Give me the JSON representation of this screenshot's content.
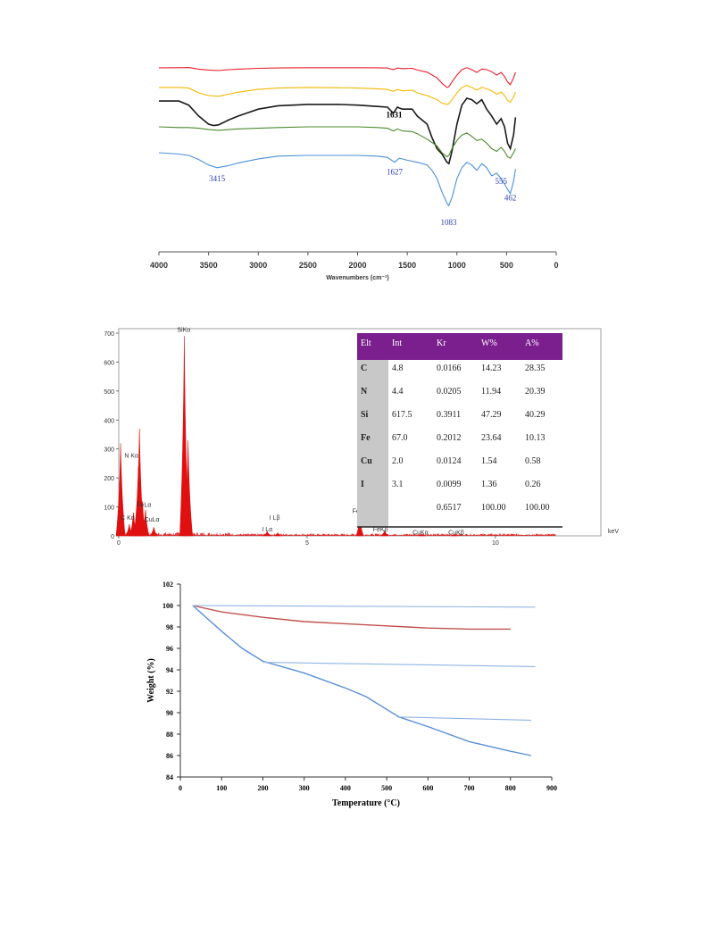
{
  "chart_data": [
    {
      "type": "line",
      "xlabel": "Wavenumbers (cm⁻¹)",
      "xlim": [
        4000,
        0
      ],
      "x_ticks": [
        "4000",
        "3500",
        "3000",
        "2500",
        "2000",
        "1500",
        "1000",
        "500",
        "0"
      ],
      "series": [
        {
          "color": "#e8202a",
          "x": [
            4000,
            3800,
            3700,
            3600,
            3500,
            3400,
            3300,
            3200,
            3000,
            2800,
            2500,
            2200,
            2000,
            1800,
            1700,
            1640,
            1600,
            1550,
            1450,
            1400,
            1300,
            1200,
            1150,
            1100,
            1080,
            1050,
            1000,
            950,
            900,
            850,
            800,
            750,
            700,
            650,
            600,
            555,
            520,
            490,
            462,
            430,
            410
          ],
          "y": [
            0.6,
            0.55,
            0.4,
            1.6,
            2.2,
            2.6,
            2.0,
            1.6,
            1.0,
            0.7,
            0.5,
            0.5,
            0.5,
            0.6,
            0.8,
            2.0,
            0.8,
            1.2,
            1.0,
            2.2,
            3.8,
            8.0,
            12.0,
            15.0,
            14.5,
            11.0,
            6.0,
            2.0,
            0.5,
            2.0,
            4.0,
            1.5,
            2.0,
            3.5,
            6.0,
            4.0,
            7.0,
            11.0,
            13.0,
            8.0,
            4.0
          ]
        },
        {
          "color": "#f5b800",
          "x": [
            4000,
            3800,
            3700,
            3600,
            3500,
            3400,
            3300,
            3200,
            3000,
            2800,
            2500,
            2200,
            2000,
            1800,
            1700,
            1640,
            1600,
            1550,
            1450,
            1400,
            1300,
            1200,
            1150,
            1100,
            1080,
            1050,
            1000,
            950,
            900,
            850,
            800,
            750,
            700,
            650,
            600,
            555,
            520,
            490,
            462,
            430,
            410
          ],
          "y": [
            15.0,
            15.0,
            15.5,
            19.0,
            21.0,
            21.5,
            20.0,
            18.5,
            16.5,
            15.5,
            15.0,
            15.2,
            15.5,
            16.0,
            16.5,
            18.0,
            16.5,
            17.5,
            17.0,
            19.0,
            21.0,
            24.0,
            26.5,
            27.5,
            27.0,
            24.0,
            19.0,
            15.0,
            13.5,
            15.0,
            17.0,
            15.0,
            16.0,
            17.5,
            20.0,
            18.5,
            21.0,
            24.5,
            26.0,
            22.0,
            18.5
          ]
        },
        {
          "color": "#1a1a1a",
          "x": [
            4000,
            3800,
            3700,
            3600,
            3500,
            3450,
            3400,
            3300,
            3200,
            3000,
            2800,
            2500,
            2200,
            2000,
            1800,
            1700,
            1640,
            1600,
            1550,
            1450,
            1400,
            1300,
            1250,
            1200,
            1150,
            1100,
            1080,
            1050,
            1000,
            950,
            900,
            850,
            800,
            750,
            700,
            650,
            600,
            555,
            520,
            490,
            462,
            430,
            410
          ],
          "y": [
            25.0,
            25.0,
            28.0,
            36.0,
            42.0,
            43.0,
            42.5,
            39.0,
            36.0,
            31.0,
            28.5,
            27.5,
            27.5,
            28.0,
            29.0,
            29.5,
            34.0,
            29.5,
            31.0,
            31.0,
            36.0,
            42.0,
            52.0,
            60.0,
            64.0,
            70.0,
            71.0,
            62.0,
            42.0,
            28.0,
            23.0,
            24.0,
            27.0,
            24.0,
            31.0,
            36.0,
            42.0,
            38.0,
            44.0,
            56.0,
            60.0,
            50.0,
            37.0
          ]
        },
        {
          "color": "#4a8a2a",
          "x": [
            4000,
            3800,
            3700,
            3600,
            3500,
            3400,
            3300,
            3200,
            3000,
            2800,
            2500,
            2200,
            2000,
            1800,
            1700,
            1640,
            1600,
            1550,
            1450,
            1400,
            1300,
            1200,
            1150,
            1100,
            1080,
            1050,
            1000,
            950,
            900,
            850,
            800,
            750,
            700,
            650,
            600,
            555,
            520,
            490,
            462,
            430,
            410
          ],
          "y": [
            44.0,
            44.5,
            44.5,
            45.0,
            46.0,
            46.5,
            46.0,
            45.5,
            45.0,
            44.5,
            44.0,
            44.0,
            44.0,
            44.5,
            45.0,
            47.0,
            45.5,
            47.0,
            47.5,
            49.0,
            53.0,
            58.0,
            63.0,
            66.0,
            65.0,
            60.0,
            54.0,
            50.0,
            48.5,
            51.0,
            54.0,
            53.0,
            56.0,
            60.0,
            62.0,
            59.0,
            62.0,
            66.0,
            67.0,
            63.0,
            60.0
          ]
        },
        {
          "color": "#4a90d9",
          "x": [
            4000,
            3800,
            3700,
            3600,
            3500,
            3415,
            3300,
            3200,
            3000,
            2800,
            2500,
            2200,
            2000,
            1800,
            1700,
            1627,
            1580,
            1500,
            1400,
            1300,
            1250,
            1200,
            1150,
            1100,
            1083,
            1050,
            1000,
            950,
            900,
            850,
            800,
            750,
            700,
            650,
            600,
            555,
            520,
            490,
            462,
            430,
            410
          ],
          "y": [
            63.0,
            64.0,
            65.0,
            68.0,
            72.0,
            74.0,
            72.5,
            70.5,
            67.5,
            65.5,
            65.0,
            65.0,
            65.0,
            65.5,
            66.5,
            70.0,
            67.0,
            68.5,
            70.0,
            72.0,
            76.0,
            82.0,
            92.0,
            100.0,
            102.0,
            96.0,
            82.0,
            74.0,
            70.0,
            72.0,
            76.0,
            71.0,
            74.0,
            80.0,
            78.0,
            82.0,
            86.0,
            90.0,
            93.0,
            84.0,
            75.0
          ]
        }
      ],
      "annotations": [
        "3415",
        "1627",
        "1631",
        "1083",
        "555",
        "462"
      ]
    },
    {
      "type": "bar",
      "xlabel": "keV",
      "xlim": [
        0,
        12.8
      ],
      "ylim": [
        0,
        700
      ],
      "x_ticks": [
        "0",
        "5",
        "10"
      ],
      "y_ticks": [
        "0",
        "100",
        "200",
        "300",
        "400",
        "500",
        "600",
        "700"
      ],
      "color": "#e01010",
      "peaks": [
        {
          "keV": 0.05,
          "counts": 320
        },
        {
          "keV": 0.28,
          "counts": 40
        },
        {
          "keV": 0.39,
          "counts": 80
        },
        {
          "keV": 0.52,
          "counts": 240
        },
        {
          "keV": 0.55,
          "counts": 370
        },
        {
          "keV": 0.63,
          "counts": 120
        },
        {
          "keV": 0.71,
          "counts": 90
        },
        {
          "keV": 0.93,
          "counts": 30
        },
        {
          "keV": 1.74,
          "counts": 690
        },
        {
          "keV": 1.84,
          "counts": 330
        },
        {
          "keV": 3.94,
          "counts": 15
        },
        {
          "keV": 4.22,
          "counts": 10
        },
        {
          "keV": 6.4,
          "counts": 65
        },
        {
          "keV": 7.06,
          "counts": 18
        },
        {
          "keV": 8.05,
          "counts": 6
        },
        {
          "keV": 8.9,
          "counts": 5
        }
      ],
      "peak_labels": [
        {
          "text": "SiKα",
          "keV": 1.74,
          "counts": 690
        },
        {
          "text": "N Kα",
          "keV": 0.39,
          "counts": 270
        },
        {
          "text": "FeLα",
          "keV": 0.7,
          "counts": 100
        },
        {
          "text": "C Kα",
          "keV": 0.1,
          "counts": 30
        },
        {
          "text": "CuLα",
          "keV": 0.93,
          "counts": 20
        },
        {
          "text": "I Lβ",
          "keV": 4.1,
          "counts": 45
        },
        {
          "text": "I Lα",
          "keV": 3.9,
          "counts": 10
        },
        {
          "text": "FeKα",
          "keV": 6.4,
          "counts": 75
        },
        {
          "text": "FeKβ",
          "keV": 7.1,
          "counts": 15
        },
        {
          "text": "CuKα",
          "keV": 8.05,
          "counts": 5
        },
        {
          "text": "CuKβ",
          "keV": 8.9,
          "counts": 5
        }
      ],
      "table": {
        "headers": [
          "Elt",
          "Int",
          "Kr",
          "W%",
          "A%"
        ],
        "header_color": "#7b1f8f",
        "rows": [
          [
            "C",
            "4.8",
            "0.0166",
            "14.23",
            "28.35"
          ],
          [
            "N",
            "4.4",
            "0.0205",
            "11.94",
            "20.39"
          ],
          [
            "Si",
            "617.5",
            "0.3911",
            "47.29",
            "40.29"
          ],
          [
            "Fe",
            "67.0",
            "0.2012",
            "23.64",
            "10.13"
          ],
          [
            "Cu",
            "2.0",
            "0.0124",
            "1.54",
            "0.58"
          ],
          [
            "I",
            "3.1",
            "0.0099",
            "1.36",
            "0.26"
          ],
          [
            "",
            "",
            "0.6517",
            "100.00",
            "100.00"
          ]
        ]
      }
    },
    {
      "type": "line",
      "xlabel": "Temperature (°C)",
      "ylabel": "Weight (%)",
      "xlim": [
        0,
        900
      ],
      "ylim": [
        84,
        102
      ],
      "x_ticks": [
        "0",
        "100",
        "200",
        "300",
        "400",
        "500",
        "600",
        "700",
        "800",
        "900"
      ],
      "y_ticks": [
        "84",
        "86",
        "88",
        "90",
        "92",
        "94",
        "96",
        "98",
        "100",
        "102"
      ],
      "series": [
        {
          "color": "#c0504d",
          "x": [
            30,
            100,
            200,
            300,
            400,
            500,
            550,
            600,
            700,
            800
          ],
          "y": [
            100,
            99.4,
            98.9,
            98.5,
            98.3,
            98.1,
            98.0,
            97.9,
            97.8,
            97.8
          ]
        },
        {
          "color": "#5b8fd6",
          "x": [
            30,
            100,
            150,
            200,
            300,
            400,
            450,
            530,
            600,
            700,
            800,
            850
          ],
          "y": [
            100,
            97.6,
            96.0,
            94.8,
            93.7,
            92.3,
            91.5,
            89.6,
            88.7,
            87.3,
            86.4,
            86.0
          ]
        },
        {
          "color": "#8fb4e6",
          "x": [
            30,
            860
          ],
          "y": [
            100,
            99.85
          ]
        },
        {
          "color": "#8fb4e6",
          "x": [
            200,
            860
          ],
          "y": [
            94.7,
            94.3
          ]
        },
        {
          "color": "#8fb4e6",
          "x": [
            530,
            850
          ],
          "y": [
            89.6,
            89.3
          ]
        }
      ]
    }
  ]
}
